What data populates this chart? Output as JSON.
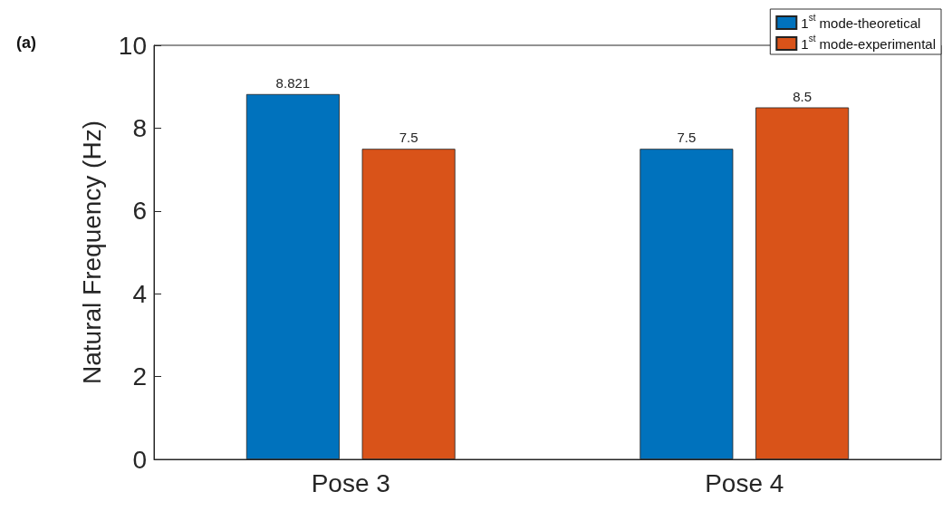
{
  "chart_data": {
    "type": "bar",
    "ylabel": "Natural Frequency (Hz)",
    "categories": [
      "Pose 3",
      "Pose 4"
    ],
    "series": [
      {
        "name": "1$^{st}$ mode-theoretical",
        "color": "#0072bd",
        "values": [
          8.821,
          7.5
        ]
      },
      {
        "name": "1$^{st}$ mode-experimental",
        "color": "#d95319",
        "values": [
          7.5,
          8.5
        ]
      }
    ],
    "ylim": [
      0,
      10
    ],
    "yticks": [
      0,
      2,
      4,
      6,
      8,
      10
    ],
    "data_labels": true,
    "grid": false,
    "legend": "top right",
    "annotations": [
      "(a)"
    ]
  }
}
